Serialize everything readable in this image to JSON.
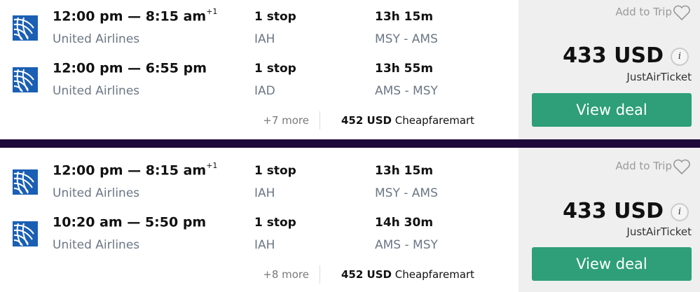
{
  "results": [
    {
      "legs": [
        {
          "time": "12:00 pm — 8:15 am",
          "day_offset": "+1",
          "airline": "United Airlines",
          "stops": "1 stop",
          "via": "IAH",
          "duration": "13h 15m",
          "route": "MSY - AMS"
        },
        {
          "time": "12:00 pm — 6:55 pm",
          "day_offset": "",
          "airline": "United Airlines",
          "stops": "1 stop",
          "via": "IAD",
          "duration": "13h 55m",
          "route": "AMS - MSY"
        }
      ],
      "more": "+7 more",
      "alt_price": "452 USD",
      "alt_provider": "Cheapfaremart",
      "add_to_trip": "Add to Trip",
      "price": "433 USD",
      "provider": "JustAirTicket",
      "cta": "View deal"
    },
    {
      "legs": [
        {
          "time": "12:00 pm — 8:15 am",
          "day_offset": "+1",
          "airline": "United Airlines",
          "stops": "1 stop",
          "via": "IAH",
          "duration": "13h 15m",
          "route": "MSY - AMS"
        },
        {
          "time": "10:20 am — 5:50 pm",
          "day_offset": "",
          "airline": "United Airlines",
          "stops": "1 stop",
          "via": "IAH",
          "duration": "14h 30m",
          "route": "AMS - MSY"
        }
      ],
      "more": "+8 more",
      "alt_price": "452 USD",
      "alt_provider": "Cheapfaremart",
      "add_to_trip": "Add to Trip",
      "price": "433 USD",
      "provider": "JustAirTicket",
      "cta": "View deal"
    }
  ],
  "colors": {
    "cta": "#2e9f78",
    "divider": "#1d0a3a",
    "panel": "#efefef",
    "airline_logo": "#1a5fb4"
  },
  "icons": {
    "airline": "united-globe-icon",
    "save": "heart-icon",
    "info": "info-icon"
  }
}
